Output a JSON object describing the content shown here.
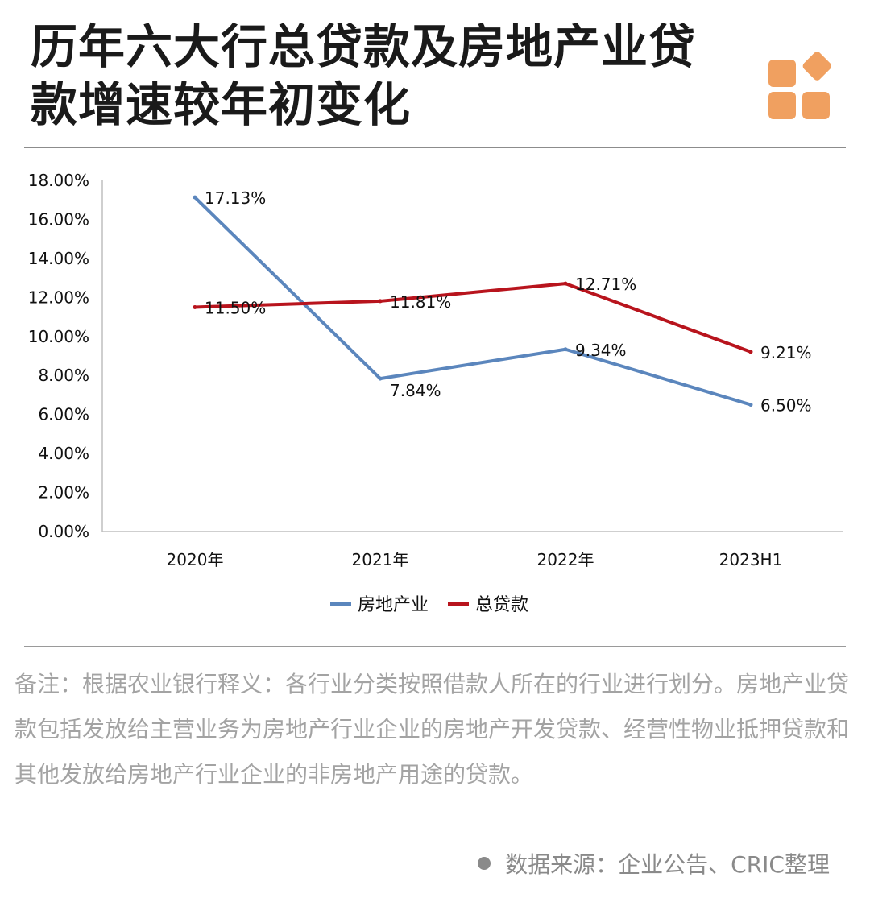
{
  "title": {
    "line1": "历年六大行总贷款及房地产业贷",
    "line2": "款增速较年初变化"
  },
  "logo": {
    "icon": "brand-squares-icon",
    "color": "#f0a060"
  },
  "chart_data": {
    "type": "line",
    "categories": [
      "2020年",
      "2021年",
      "2022年",
      "2023H1"
    ],
    "y_ticks": [
      "0.00%",
      "2.00%",
      "4.00%",
      "6.00%",
      "8.00%",
      "10.00%",
      "12.00%",
      "14.00%",
      "16.00%",
      "18.00%"
    ],
    "ylim": [
      0,
      18
    ],
    "grid": false,
    "legend_position": "bottom",
    "series": [
      {
        "name": "房地产业",
        "color": "#5b86bd",
        "values": [
          17.13,
          7.84,
          9.34,
          6.5
        ],
        "labels": [
          "17.13%",
          "7.84%",
          "9.34%",
          "6.50%"
        ]
      },
      {
        "name": "总贷款",
        "color": "#b8141d",
        "values": [
          11.5,
          11.81,
          12.71,
          9.21
        ],
        "labels": [
          "11.50%",
          "11.81%",
          "12.71%",
          "9.21%"
        ]
      }
    ]
  },
  "note": "备注：根据农业银行释义：各行业分类按照借款人所在的行业进行划分。房地产业贷款包括发放给主营业务为房地产行业企业的房地产开发贷款、经营性物业抵押贷款和其他发放给房地产行业企业的非房地产用途的贷款。",
  "source": "数据来源：企业公告、CRIC整理"
}
